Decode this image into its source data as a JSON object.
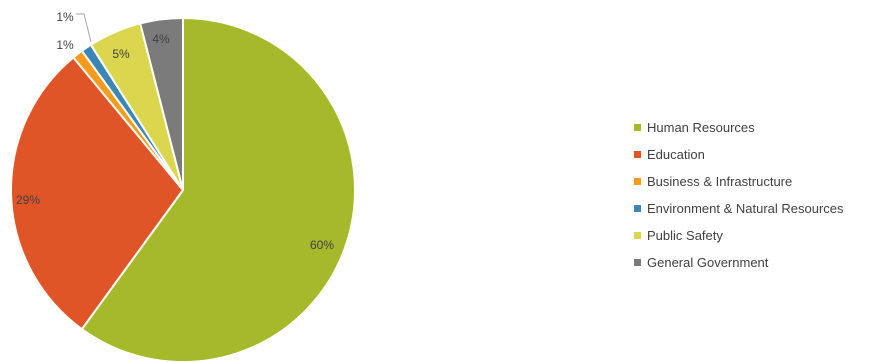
{
  "chart_data": {
    "type": "pie",
    "categories": [
      "Human Resources",
      "Education",
      "Business & Infrastructure",
      "Environment & Natural Resources",
      "Public Safety",
      "General Government"
    ],
    "values": [
      60,
      29,
      1,
      1,
      5,
      4
    ],
    "data_labels": [
      "60%",
      "29%",
      "1%",
      "1%",
      "5%",
      "4%"
    ],
    "colors": [
      "#a5b92b",
      "#e05527",
      "#f79b1d",
      "#3c86b4",
      "#dad64d",
      "#7b7b7b"
    ],
    "legend_position": "right",
    "start_angle": "12 o'clock",
    "direction": "clockwise"
  }
}
